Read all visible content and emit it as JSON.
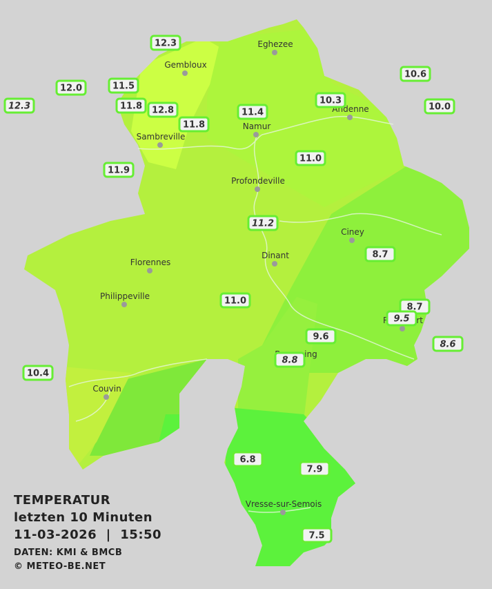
{
  "title": "TEMPERATUR",
  "subtitle": "letzten 10 Minuten",
  "timestamp": "11-03-2026  |  15:50",
  "source": "DATEN: KMI & BMCB",
  "copyright": "© METEO-BE.NET",
  "cities": [
    "Eghezee",
    "Gembloux",
    "Andenne",
    "Namur",
    "Sambreville",
    "Profondeville",
    "Ciney",
    "Dinant",
    "Florennes",
    "Philippeville",
    "Rochefort",
    "Beauraing",
    "Couvin",
    "Vresse-sur-Semois"
  ],
  "stations": [
    {
      "value": "12.3",
      "italic": false
    },
    {
      "value": "10.6",
      "italic": false
    },
    {
      "value": "12.0",
      "italic": false
    },
    {
      "value": "11.5",
      "italic": false
    },
    {
      "value": "10.3",
      "italic": false
    },
    {
      "value": "12.3",
      "italic": true
    },
    {
      "value": "11.8",
      "italic": false
    },
    {
      "value": "12.8",
      "italic": false
    },
    {
      "value": "11.4",
      "italic": false
    },
    {
      "value": "10.0",
      "italic": false
    },
    {
      "value": "11.8",
      "italic": false
    },
    {
      "value": "11.0",
      "italic": false
    },
    {
      "value": "11.9",
      "italic": false
    },
    {
      "value": "11.2",
      "italic": true
    },
    {
      "value": "8.7",
      "italic": false
    },
    {
      "value": "8.7",
      "italic": false
    },
    {
      "value": "11.0",
      "italic": false
    },
    {
      "value": "9.5",
      "italic": true
    },
    {
      "value": "9.6",
      "italic": false
    },
    {
      "value": "8.6",
      "italic": true
    },
    {
      "value": "8.8",
      "italic": true
    },
    {
      "value": "10.4",
      "italic": false
    },
    {
      "value": "6.8",
      "italic": false
    },
    {
      "value": "7.9",
      "italic": false
    },
    {
      "value": "7.5",
      "italic": false
    }
  ]
}
